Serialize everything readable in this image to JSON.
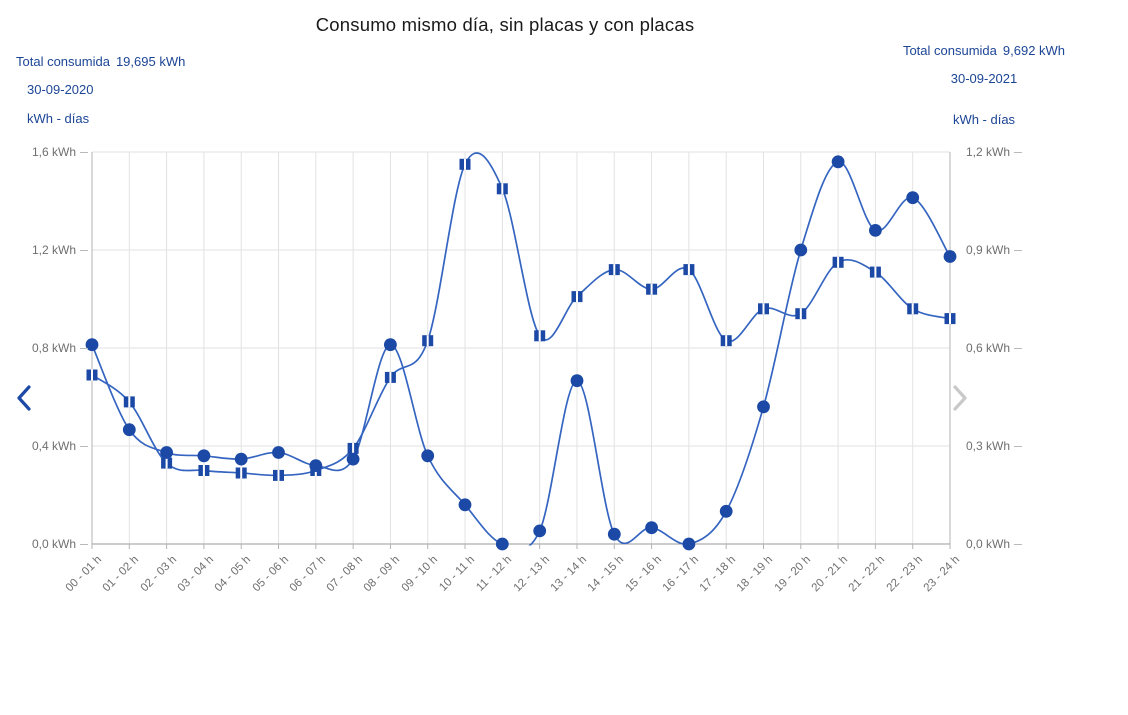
{
  "title": "Consumo mismo día, sin placas y con placas",
  "summary_left": {
    "label": "Total consumida",
    "value": "19,695 kWh",
    "date": "30-09-2020",
    "units": "kWh - días"
  },
  "summary_right": {
    "label": "Total consumida",
    "value": "9,692 kWh",
    "date": "30-09-2021",
    "units": "kWh - días"
  },
  "chart_data": {
    "type": "line",
    "title": "Consumo mismo día, sin placas y con placas",
    "categories": [
      "00 - 01 h",
      "01 - 02 h",
      "02 - 03 h",
      "03 - 04 h",
      "04 - 05 h",
      "05 - 06 h",
      "06 - 07 h",
      "07 - 08 h",
      "08 - 09 h",
      "09 - 10 h",
      "10 - 11 h",
      "11 - 12 h",
      "12 - 13 h",
      "13 - 14 h",
      "14 - 15 h",
      "15 - 16 h",
      "16 - 17 h",
      "17 - 18 h",
      "18 - 19 h",
      "19 - 20 h",
      "20 - 21 h",
      "21 - 22 h",
      "22 - 23 h",
      "23 - 24 h"
    ],
    "series": [
      {
        "name": "30-09-2020",
        "description": "sin placas",
        "axis": "left",
        "marker": "square",
        "values": [
          0.69,
          0.58,
          0.33,
          0.3,
          0.29,
          0.28,
          0.3,
          0.39,
          0.68,
          0.83,
          1.55,
          1.45,
          0.85,
          1.01,
          1.12,
          1.04,
          1.12,
          0.83,
          0.96,
          0.94,
          1.15,
          1.11,
          0.96,
          0.92
        ]
      },
      {
        "name": "30-09-2021",
        "description": "con placas",
        "axis": "right",
        "marker": "circle",
        "values": [
          0.61,
          0.35,
          0.28,
          0.27,
          0.26,
          0.28,
          0.24,
          0.26,
          0.61,
          0.27,
          0.12,
          0.0,
          0.04,
          0.5,
          0.03,
          0.05,
          0.0,
          0.1,
          0.42,
          0.9,
          1.17,
          0.96,
          1.06,
          0.88
        ]
      }
    ],
    "left_axis": {
      "min": 0,
      "max": 1.6,
      "ticks": [
        "0,0 kWh",
        "0,4 kWh",
        "0,8 kWh",
        "1,2 kWh",
        "1,6 kWh"
      ]
    },
    "right_axis": {
      "min": 0,
      "max": 1.2,
      "ticks": [
        "0,0 kWh",
        "0,3 kWh",
        "0,6 kWh",
        "0,9 kWh",
        "1,2 kWh"
      ]
    },
    "xlabel": "",
    "ylabel_left": "kWh",
    "ylabel_right": "kWh",
    "grid": true,
    "legend": "none",
    "colors": {
      "series_line": "#3565c0",
      "series_marker": "#1b49a5",
      "grid": "#e2e2e2",
      "axis": "#b3b3b3",
      "axis_bottom": "#9a9a9a",
      "tick_text": "#6f6f6f",
      "header_text": "#1c4596",
      "title_text": "#1a1a1a",
      "prev_arrow": "#1b49a5",
      "next_arrow": "#c9c9c9"
    }
  }
}
